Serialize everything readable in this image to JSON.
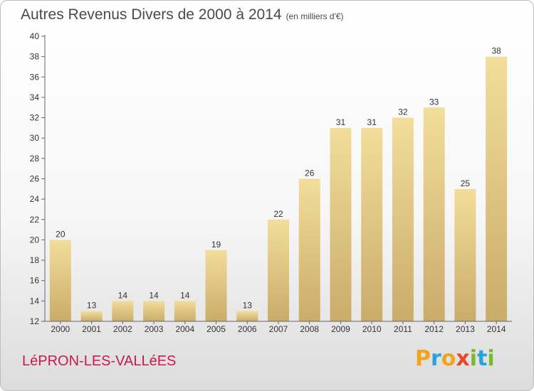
{
  "header": {
    "title": "Autres Revenus Divers de 2000 à 2014",
    "subtitle": "(en milliers d'€)"
  },
  "footer": {
    "commune": "LéPRON-LES-VALLéES",
    "logo": {
      "text": "Proxiti",
      "letters": [
        {
          "ch": "P",
          "color": "#f0a41f"
        },
        {
          "ch": "r",
          "color": "#2aa3d9"
        },
        {
          "ch": "o",
          "color": "#f0a41f"
        },
        {
          "ch": "x",
          "color": "#e34a2a"
        },
        {
          "ch": "i",
          "color": "#7cb82f"
        },
        {
          "ch": "t",
          "color": "#2aa3d9"
        },
        {
          "ch": "i",
          "color": "#7cb82f"
        }
      ]
    }
  },
  "chart_data": {
    "type": "bar",
    "title": "Autres Revenus Divers de 2000 à 2014",
    "subtitle": "(en milliers d'€)",
    "xlabel": "",
    "ylabel": "",
    "categories": [
      "2000",
      "2001",
      "2002",
      "2003",
      "2004",
      "2005",
      "2006",
      "2007",
      "2008",
      "2009",
      "2010",
      "2011",
      "2012",
      "2013",
      "2014"
    ],
    "values": [
      20,
      13,
      14,
      14,
      14,
      19,
      13,
      22,
      26,
      31,
      31,
      32,
      33,
      25,
      38
    ],
    "ylim": [
      12,
      40
    ],
    "yticks": [
      12,
      14,
      16,
      18,
      20,
      22,
      24,
      26,
      28,
      30,
      32,
      34,
      36,
      38,
      40
    ],
    "grid": false,
    "data_labels": true,
    "colors": {
      "bar_light": "#f3dd9b",
      "bar_dark": "#c9ac69",
      "axis": "#666666",
      "text": "#333333"
    }
  }
}
